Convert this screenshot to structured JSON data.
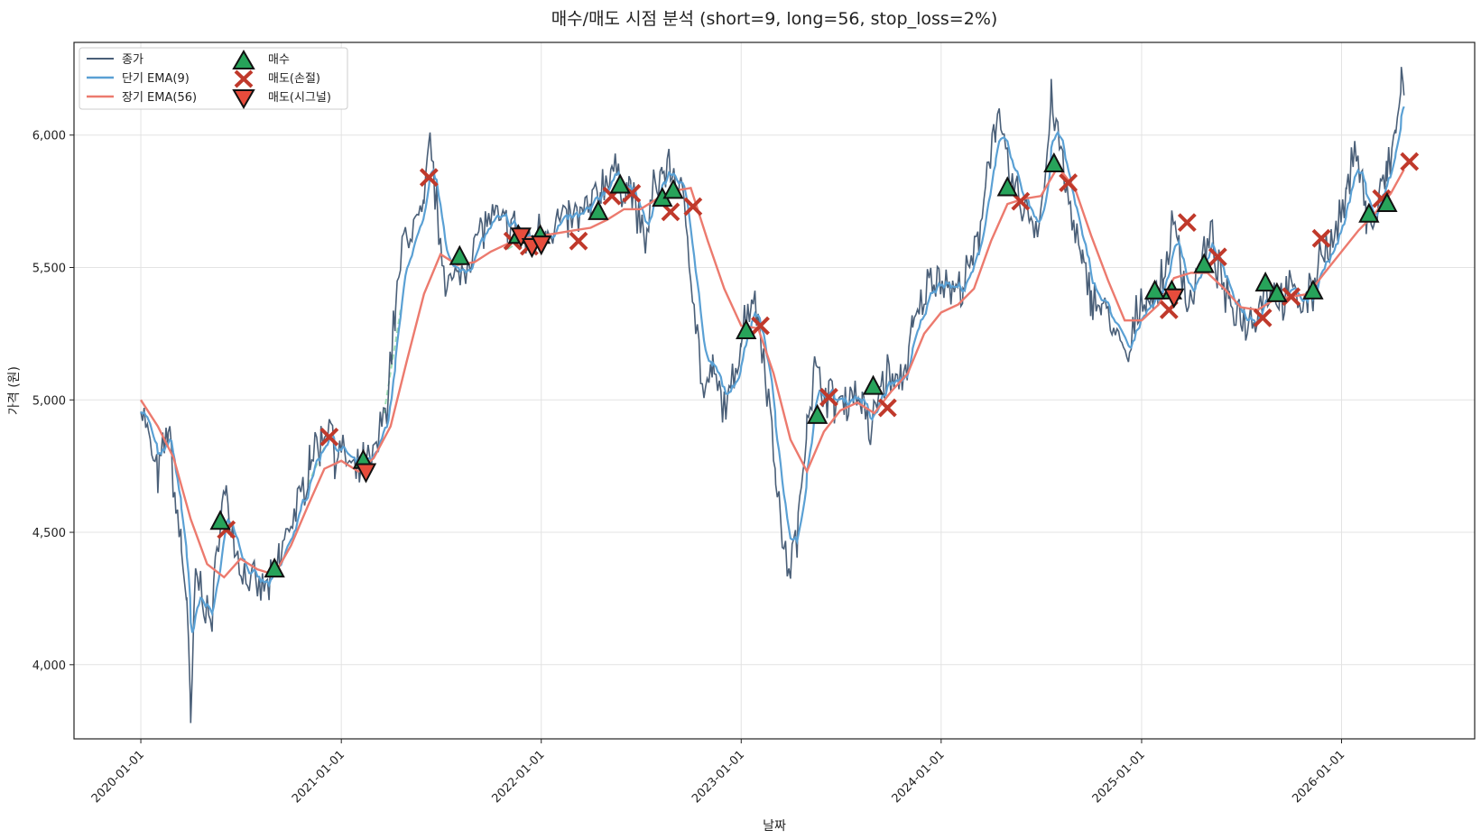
{
  "chart_data": {
    "type": "line",
    "title": "매수/매도 시점 분석 (short=9, long=56, stop_loss=2%)",
    "xlabel": "날짜",
    "ylabel": "가격 (원)",
    "xlim": [
      "2019-09-01",
      "2026-09-01"
    ],
    "ylim": [
      3720,
      6350
    ],
    "x_ticks": [
      "2020-01-01",
      "2021-01-01",
      "2022-01-01",
      "2023-01-01",
      "2024-01-01",
      "2025-01-01",
      "2026-01-01"
    ],
    "y_ticks": [
      4000,
      4500,
      5000,
      5500,
      6000
    ],
    "y_tick_labels": [
      "4,000",
      "4,500",
      "5,000",
      "5,500",
      "6,000"
    ],
    "grid": true,
    "legend_position": "top-left",
    "legend": [
      "종가",
      "단기 EMA(9)",
      "장기 EMA(56)",
      "매수",
      "매도(손절)",
      "매도(시그널)"
    ],
    "colors": {
      "close": "#4a5f78",
      "ema_short": "#5aa0d4",
      "ema_long": "#ec7a6e",
      "buy": "#27a35a",
      "sell_stop": "#c0392b",
      "sell_signal": "#e74c3c",
      "dashed": "#9fe0b4"
    },
    "close_keypoints": [
      [
        "2020-01-01",
        5000
      ],
      [
        "2020-01-15",
        4850
      ],
      [
        "2020-02-01",
        4700
      ],
      [
        "2020-02-20",
        4900
      ],
      [
        "2020-03-05",
        4600
      ],
      [
        "2020-03-15",
        4450
      ],
      [
        "2020-03-25",
        4250
      ],
      [
        "2020-04-01",
        3760
      ],
      [
        "2020-04-10",
        4350
      ],
      [
        "2020-04-25",
        4250
      ],
      [
        "2020-05-10",
        4150
      ],
      [
        "2020-05-25",
        4600
      ],
      [
        "2020-06-05",
        4640
      ],
      [
        "2020-06-20",
        4450
      ],
      [
        "2020-07-05",
        4350
      ],
      [
        "2020-08-01",
        4280
      ],
      [
        "2020-08-25",
        4300
      ],
      [
        "2020-09-10",
        4400
      ],
      [
        "2020-10-01",
        4550
      ],
      [
        "2020-10-20",
        4620
      ],
      [
        "2020-11-05",
        4800
      ],
      [
        "2020-11-25",
        4830
      ],
      [
        "2020-12-10",
        4950
      ],
      [
        "2020-12-20",
        4800
      ],
      [
        "2021-01-10",
        4780
      ],
      [
        "2021-01-25",
        4700
      ],
      [
        "2021-02-10",
        4760
      ],
      [
        "2021-02-25",
        4750
      ],
      [
        "2021-03-10",
        4850
      ],
      [
        "2021-03-25",
        5000
      ],
      [
        "2021-04-10",
        5350
      ],
      [
        "2021-04-25",
        5600
      ],
      [
        "2021-05-10",
        5650
      ],
      [
        "2021-06-01",
        5700
      ],
      [
        "2021-06-12",
        6000
      ],
      [
        "2021-06-25",
        5700
      ],
      [
        "2021-07-10",
        5480
      ],
      [
        "2021-07-25",
        5420
      ],
      [
        "2021-08-10",
        5500
      ],
      [
        "2021-08-25",
        5560
      ],
      [
        "2021-09-15",
        5650
      ],
      [
        "2021-10-01",
        5680
      ],
      [
        "2021-10-20",
        5660
      ],
      [
        "2021-11-10",
        5650
      ],
      [
        "2021-11-25",
        5620
      ],
      [
        "2021-12-10",
        5580
      ],
      [
        "2021-12-25",
        5640
      ],
      [
        "2022-01-10",
        5650
      ],
      [
        "2022-02-01",
        5670
      ],
      [
        "2022-02-20",
        5680
      ],
      [
        "2022-03-10",
        5690
      ],
      [
        "2022-04-01",
        5720
      ],
      [
        "2022-04-20",
        5800
      ],
      [
        "2022-05-10",
        5880
      ],
      [
        "2022-05-25",
        5800
      ],
      [
        "2022-06-10",
        5820
      ],
      [
        "2022-06-25",
        5700
      ],
      [
        "2022-07-10",
        5600
      ],
      [
        "2022-07-25",
        5780
      ],
      [
        "2022-08-10",
        5860
      ],
      [
        "2022-08-25",
        5880
      ],
      [
        "2022-09-10",
        5800
      ],
      [
        "2022-09-25",
        5650
      ],
      [
        "2022-10-10",
        5300
      ],
      [
        "2022-10-25",
        5000
      ],
      [
        "2022-11-10",
        5100
      ],
      [
        "2022-11-25",
        5000
      ],
      [
        "2022-12-10",
        4980
      ],
      [
        "2023-01-01",
        5250
      ],
      [
        "2023-01-20",
        5400
      ],
      [
        "2023-02-05",
        5280
      ],
      [
        "2023-02-20",
        5000
      ],
      [
        "2023-03-05",
        4750
      ],
      [
        "2023-03-20",
        4400
      ],
      [
        "2023-04-01",
        4380
      ],
      [
        "2023-04-15",
        4500
      ],
      [
        "2023-05-01",
        4950
      ],
      [
        "2023-05-15",
        5100
      ],
      [
        "2023-06-01",
        5050
      ],
      [
        "2023-06-20",
        4980
      ],
      [
        "2023-07-10",
        5000
      ],
      [
        "2023-07-25",
        5030
      ],
      [
        "2023-08-10",
        5000
      ],
      [
        "2023-08-25",
        4850
      ],
      [
        "2023-09-10",
        5050
      ],
      [
        "2023-09-25",
        5100
      ],
      [
        "2023-10-10",
        5050
      ],
      [
        "2023-10-25",
        5100
      ],
      [
        "2023-11-10",
        5250
      ],
      [
        "2023-11-25",
        5350
      ],
      [
        "2023-12-10",
        5450
      ],
      [
        "2023-12-25",
        5480
      ],
      [
        "2024-01-10",
        5450
      ],
      [
        "2024-01-25",
        5400
      ],
      [
        "2024-02-10",
        5430
      ],
      [
        "2024-02-25",
        5500
      ],
      [
        "2024-03-10",
        5600
      ],
      [
        "2024-03-25",
        5900
      ],
      [
        "2024-04-10",
        6050
      ],
      [
        "2024-04-25",
        5950
      ],
      [
        "2024-05-10",
        5800
      ],
      [
        "2024-05-25",
        5750
      ],
      [
        "2024-06-10",
        5700
      ],
      [
        "2024-06-25",
        5650
      ],
      [
        "2024-07-10",
        5850
      ],
      [
        "2024-07-20",
        6150
      ],
      [
        "2024-08-01",
        6000
      ],
      [
        "2024-08-15",
        5800
      ],
      [
        "2024-08-30",
        5650
      ],
      [
        "2024-09-15",
        5500
      ],
      [
        "2024-10-01",
        5400
      ],
      [
        "2024-10-20",
        5350
      ],
      [
        "2024-11-05",
        5300
      ],
      [
        "2024-11-20",
        5200
      ],
      [
        "2024-12-10",
        5150
      ],
      [
        "2024-12-25",
        5350
      ],
      [
        "2025-01-10",
        5400
      ],
      [
        "2025-01-25",
        5380
      ],
      [
        "2025-02-10",
        5450
      ],
      [
        "2025-02-25",
        5650
      ],
      [
        "2025-03-10",
        5600
      ],
      [
        "2025-03-25",
        5350
      ],
      [
        "2025-04-10",
        5450
      ],
      [
        "2025-04-25",
        5550
      ],
      [
        "2025-05-10",
        5600
      ],
      [
        "2025-05-25",
        5450
      ],
      [
        "2025-06-10",
        5350
      ],
      [
        "2025-06-25",
        5350
      ],
      [
        "2025-07-10",
        5300
      ],
      [
        "2025-07-25",
        5320
      ],
      [
        "2025-08-10",
        5400
      ],
      [
        "2025-08-25",
        5430
      ],
      [
        "2025-09-10",
        5380
      ],
      [
        "2025-09-25",
        5400
      ],
      [
        "2025-10-10",
        5390
      ],
      [
        "2025-10-25",
        5380
      ],
      [
        "2025-11-10",
        5400
      ],
      [
        "2025-11-25",
        5600
      ],
      [
        "2025-12-10",
        5550
      ],
      [
        "2025-12-25",
        5650
      ],
      [
        "2026-01-10",
        5750
      ],
      [
        "2026-01-25",
        6000
      ],
      [
        "2026-02-05",
        5850
      ],
      [
        "2026-02-15",
        5700
      ],
      [
        "2026-03-01",
        5650
      ],
      [
        "2026-03-15",
        5800
      ],
      [
        "2026-03-25",
        5850
      ],
      [
        "2026-04-10",
        6000
      ],
      [
        "2026-04-20",
        6220
      ],
      [
        "2026-04-25",
        6150
      ]
    ],
    "ema_long_keypoints": [
      [
        "2020-01-01",
        5000
      ],
      [
        "2020-02-01",
        4900
      ],
      [
        "2020-03-01",
        4780
      ],
      [
        "2020-04-01",
        4550
      ],
      [
        "2020-05-01",
        4380
      ],
      [
        "2020-06-01",
        4330
      ],
      [
        "2020-07-01",
        4400
      ],
      [
        "2020-08-01",
        4360
      ],
      [
        "2020-09-01",
        4340
      ],
      [
        "2020-10-01",
        4450
      ],
      [
        "2020-11-01",
        4600
      ],
      [
        "2020-12-01",
        4740
      ],
      [
        "2021-01-01",
        4770
      ],
      [
        "2021-02-01",
        4730
      ],
      [
        "2021-03-01",
        4780
      ],
      [
        "2021-04-01",
        4900
      ],
      [
        "2021-05-01",
        5150
      ],
      [
        "2021-06-01",
        5400
      ],
      [
        "2021-07-01",
        5550
      ],
      [
        "2021-08-01",
        5510
      ],
      [
        "2021-09-01",
        5520
      ],
      [
        "2021-10-01",
        5560
      ],
      [
        "2021-11-01",
        5590
      ],
      [
        "2021-12-01",
        5610
      ],
      [
        "2022-01-01",
        5620
      ],
      [
        "2022-02-01",
        5630
      ],
      [
        "2022-03-01",
        5640
      ],
      [
        "2022-04-01",
        5650
      ],
      [
        "2022-05-01",
        5680
      ],
      [
        "2022-06-01",
        5720
      ],
      [
        "2022-07-01",
        5720
      ],
      [
        "2022-08-01",
        5760
      ],
      [
        "2022-09-01",
        5790
      ],
      [
        "2022-10-01",
        5800
      ],
      [
        "2022-11-01",
        5600
      ],
      [
        "2022-12-01",
        5420
      ],
      [
        "2023-01-01",
        5280
      ],
      [
        "2023-02-01",
        5270
      ],
      [
        "2023-03-01",
        5100
      ],
      [
        "2023-04-01",
        4850
      ],
      [
        "2023-05-01",
        4730
      ],
      [
        "2023-06-01",
        4880
      ],
      [
        "2023-07-01",
        4960
      ],
      [
        "2023-08-01",
        4990
      ],
      [
        "2023-09-01",
        4950
      ],
      [
        "2023-10-01",
        5030
      ],
      [
        "2023-11-01",
        5100
      ],
      [
        "2023-12-01",
        5250
      ],
      [
        "2024-01-01",
        5330
      ],
      [
        "2024-02-01",
        5360
      ],
      [
        "2024-03-01",
        5420
      ],
      [
        "2024-04-01",
        5600
      ],
      [
        "2024-05-01",
        5740
      ],
      [
        "2024-06-01",
        5760
      ],
      [
        "2024-07-01",
        5770
      ],
      [
        "2024-08-01",
        5880
      ],
      [
        "2024-09-01",
        5800
      ],
      [
        "2024-10-01",
        5620
      ],
      [
        "2024-11-01",
        5450
      ],
      [
        "2024-12-01",
        5300
      ],
      [
        "2025-01-01",
        5300
      ],
      [
        "2025-02-01",
        5360
      ],
      [
        "2025-03-01",
        5460
      ],
      [
        "2025-04-01",
        5480
      ],
      [
        "2025-05-01",
        5480
      ],
      [
        "2025-06-01",
        5420
      ],
      [
        "2025-07-01",
        5350
      ],
      [
        "2025-08-01",
        5340
      ],
      [
        "2025-09-01",
        5380
      ],
      [
        "2025-10-01",
        5390
      ],
      [
        "2025-11-01",
        5400
      ],
      [
        "2025-12-01",
        5480
      ],
      [
        "2026-01-01",
        5560
      ],
      [
        "2026-02-01",
        5640
      ],
      [
        "2026-03-01",
        5700
      ],
      [
        "2026-04-01",
        5780
      ],
      [
        "2026-04-25",
        5870
      ]
    ],
    "buy_points": [
      [
        "2020-05-25",
        4540
      ],
      [
        "2020-09-01",
        4360
      ],
      [
        "2021-02-10",
        4770
      ],
      [
        "2021-08-05",
        5540
      ],
      [
        "2021-11-20",
        5620
      ],
      [
        "2021-12-30",
        5620
      ],
      [
        "2022-04-15",
        5710
      ],
      [
        "2022-05-25",
        5810
      ],
      [
        "2022-08-10",
        5760
      ],
      [
        "2022-08-30",
        5790
      ],
      [
        "2023-01-10",
        5260
      ],
      [
        "2023-05-20",
        4940
      ],
      [
        "2023-08-30",
        5050
      ],
      [
        "2024-05-01",
        5800
      ],
      [
        "2024-07-25",
        5890
      ],
      [
        "2025-01-25",
        5410
      ],
      [
        "2025-02-25",
        5410
      ],
      [
        "2025-04-25",
        5510
      ],
      [
        "2025-08-15",
        5440
      ],
      [
        "2025-09-05",
        5400
      ],
      [
        "2025-11-10",
        5410
      ],
      [
        "2026-02-20",
        5700
      ],
      [
        "2026-03-25",
        5740
      ]
    ],
    "sell_stop_points": [
      [
        "2020-06-05",
        4510
      ],
      [
        "2020-12-10",
        4860
      ],
      [
        "2021-06-10",
        5840
      ],
      [
        "2021-11-10",
        5600
      ],
      [
        "2021-12-10",
        5580
      ],
      [
        "2022-03-10",
        5600
      ],
      [
        "2022-05-10",
        5770
      ],
      [
        "2022-06-15",
        5780
      ],
      [
        "2022-08-25",
        5710
      ],
      [
        "2022-10-05",
        5730
      ],
      [
        "2023-02-05",
        5280
      ],
      [
        "2023-06-10",
        5010
      ],
      [
        "2023-09-25",
        4970
      ],
      [
        "2024-05-25",
        5750
      ],
      [
        "2024-08-20",
        5820
      ],
      [
        "2025-02-20",
        5340
      ],
      [
        "2025-03-25",
        5670
      ],
      [
        "2025-05-20",
        5540
      ],
      [
        "2025-08-10",
        5310
      ],
      [
        "2025-10-01",
        5390
      ],
      [
        "2025-11-25",
        5610
      ],
      [
        "2026-03-15",
        5760
      ],
      [
        "2026-05-05",
        5900
      ]
    ],
    "sell_signal_points": [
      [
        "2021-02-15",
        4730
      ],
      [
        "2021-11-25",
        5620
      ],
      [
        "2021-12-15",
        5580
      ],
      [
        "2022-01-01",
        5590
      ],
      [
        "2025-03-01",
        5390
      ]
    ],
    "dashed_segments": [
      [
        [
          "2020-11-01",
          4680
        ],
        [
          "2020-12-01",
          4820
        ]
      ],
      [
        [
          "2021-03-20",
          4950
        ],
        [
          "2021-04-20",
          5350
        ]
      ],
      [
        [
          "2021-11-01",
          5570
        ],
        [
          "2021-12-10",
          5620
        ]
      ]
    ]
  }
}
